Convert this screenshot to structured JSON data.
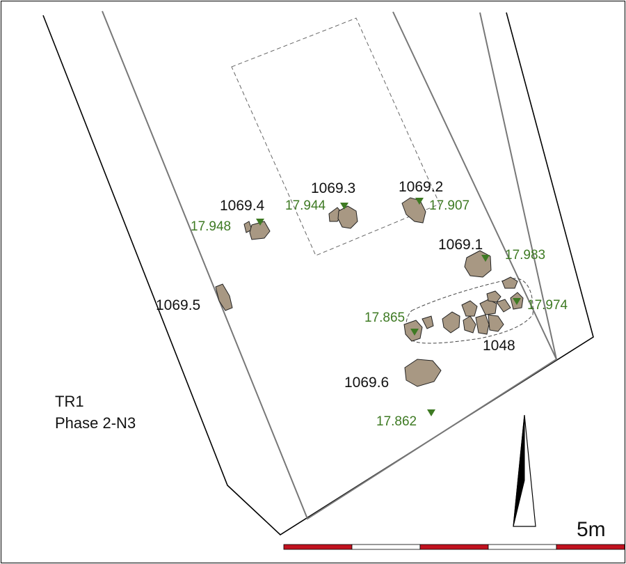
{
  "site": {
    "trench": "TR1",
    "phase": "Phase 2-N3"
  },
  "features": [
    {
      "id": "f-1069-4",
      "label": "1069.4"
    },
    {
      "id": "f-1069-3",
      "label": "1069.3"
    },
    {
      "id": "f-1069-2",
      "label": "1069.2"
    },
    {
      "id": "f-1069-1",
      "label": "1069.1"
    },
    {
      "id": "f-1069-5",
      "label": "1069.5"
    },
    {
      "id": "f-1069-6",
      "label": "1069.6"
    },
    {
      "id": "f-1048",
      "label": "1048"
    }
  ],
  "levels": [
    {
      "label": "17.948"
    },
    {
      "label": "17.944"
    },
    {
      "label": "17.907"
    },
    {
      "label": "17.983"
    },
    {
      "label": "17.974"
    },
    {
      "label": "17.865"
    },
    {
      "label": "17.862"
    }
  ],
  "scale": {
    "label": "5m",
    "segments": 5
  },
  "colors": {
    "stone_fill": "#a89883",
    "level_marker": "#3e7a23",
    "scale_red": "#c1121f",
    "boundary": "#000000",
    "inner_line": "#777777"
  },
  "icons": {
    "north_arrow": "north-arrow-icon",
    "level_marker": "triangle-down-icon"
  }
}
